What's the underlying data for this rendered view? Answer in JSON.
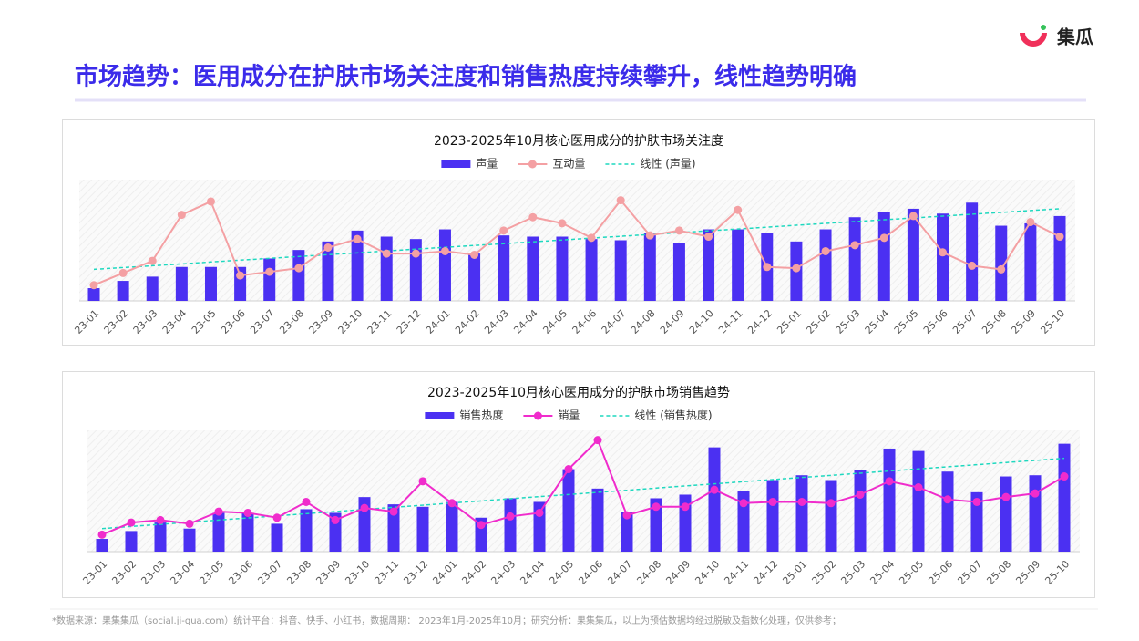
{
  "header": {
    "title": "市场趋势：医用成分在护肤市场关注度和销售热度持续攀升，线性趋势明确",
    "logo": "集瓜"
  },
  "footer": "*数据来源：果集集瓜（social.ji-gua.com）统计平台：抖音、快手、小红书，数据周期： 2023年1月-2025年10月；研究分析：果集集瓜，以上为预估数据均经过脱敏及指数化处理，仅供参考；",
  "chart_data": [
    {
      "type": "bar",
      "title": "2023-2025年10月核心医用成分的护肤市场关注度",
      "categories": [
        "23-01",
        "23-02",
        "23-03",
        "23-04",
        "23-05",
        "23-06",
        "23-07",
        "23-08",
        "23-09",
        "23-10",
        "23-11",
        "23-12",
        "24-01",
        "24-02",
        "24-03",
        "24-04",
        "24-05",
        "24-06",
        "24-07",
        "24-08",
        "24-09",
        "24-10",
        "24-11",
        "24-12",
        "25-01",
        "25-02",
        "25-03",
        "25-04",
        "25-05",
        "25-06",
        "25-07",
        "25-08",
        "25-09",
        "25-10"
      ],
      "ylim": [
        0,
        100
      ],
      "series": [
        {
          "name": "声量",
          "type": "bar",
          "color": "#4b30f2",
          "values": [
            10.5,
            16.5,
            20,
            28,
            28,
            28,
            35,
            42,
            49,
            58,
            53,
            51,
            59,
            39,
            54,
            53,
            53,
            51,
            50,
            56,
            48,
            59,
            59,
            56,
            49,
            59,
            69,
            73,
            76,
            72,
            81,
            62,
            64,
            70
          ]
        },
        {
          "name": "互动量",
          "type": "line",
          "color": "#f4a0a3",
          "values": [
            13,
            23,
            33,
            71,
            82,
            21,
            24,
            27,
            44,
            51,
            39,
            39,
            41,
            38,
            58,
            69,
            64,
            52,
            83,
            54,
            58,
            53,
            75,
            28,
            27,
            41,
            46,
            52,
            70,
            40,
            29,
            26,
            65,
            53
          ]
        },
        {
          "name": "线性 (声量)",
          "type": "trend",
          "color": "#1fd8bf",
          "values": [
            26,
            27.5,
            29,
            30.5,
            32.1,
            33.6,
            35.1,
            36.6,
            38.1,
            39.6,
            41.2,
            42.7,
            44.2,
            45.7,
            47.2,
            48.7,
            50.2,
            51.8,
            53.3,
            54.8,
            56.3,
            57.8,
            59.3,
            60.8,
            62.4,
            63.9,
            65.4,
            66.9,
            68.4,
            69.9,
            71.5,
            73,
            74.5,
            76
          ]
        }
      ]
    },
    {
      "type": "bar",
      "title": "2023-2025年10月核心医用成分的护肤市场销售趋势",
      "categories": [
        "23-01",
        "23-02",
        "23-03",
        "23-04",
        "23-05",
        "23-06",
        "23-07",
        "23-08",
        "23-09",
        "23-10",
        "23-11",
        "23-12",
        "24-01",
        "24-02",
        "24-03",
        "24-04",
        "24-05",
        "24-06",
        "24-07",
        "24-08",
        "24-09",
        "24-10",
        "24-11",
        "24-12",
        "25-01",
        "25-02",
        "25-03",
        "25-04",
        "25-05",
        "25-06",
        "25-07",
        "25-08",
        "25-09",
        "25-10"
      ],
      "ylim": [
        0,
        100
      ],
      "series": [
        {
          "name": "销售热度",
          "type": "bar",
          "color": "#4b30f2",
          "values": [
            10.5,
            17,
            24,
            19,
            32,
            32,
            23,
            35,
            32,
            45,
            39,
            37,
            41,
            28,
            44,
            41,
            68,
            52,
            33,
            44,
            47,
            86,
            50,
            59,
            63,
            59,
            67,
            85,
            83,
            66,
            49,
            62,
            63,
            89
          ]
        },
        {
          "name": "销量",
          "type": "line",
          "color": "#f02ccc",
          "values": [
            14,
            24,
            26,
            23,
            33,
            32,
            28,
            41,
            26,
            36,
            33,
            58,
            40,
            22,
            29,
            32,
            68,
            92,
            30,
            37,
            37,
            51,
            40,
            41,
            41,
            40,
            47,
            58,
            53,
            43,
            41,
            45,
            48,
            62
          ]
        },
        {
          "name": "线性 (销售热度)",
          "type": "trend",
          "color": "#1fd8bf",
          "values": [
            19,
            20.8,
            22.5,
            24.3,
            26,
            27.8,
            29.5,
            31.3,
            33.1,
            34.8,
            36.6,
            38.3,
            40.1,
            41.8,
            43.6,
            45.4,
            47.1,
            48.9,
            50.6,
            52.4,
            54.2,
            55.9,
            57.7,
            59.4,
            61.2,
            62.9,
            64.7,
            66.5,
            68.2,
            70,
            71.7,
            73.5,
            75.2,
            77
          ]
        }
      ]
    }
  ]
}
